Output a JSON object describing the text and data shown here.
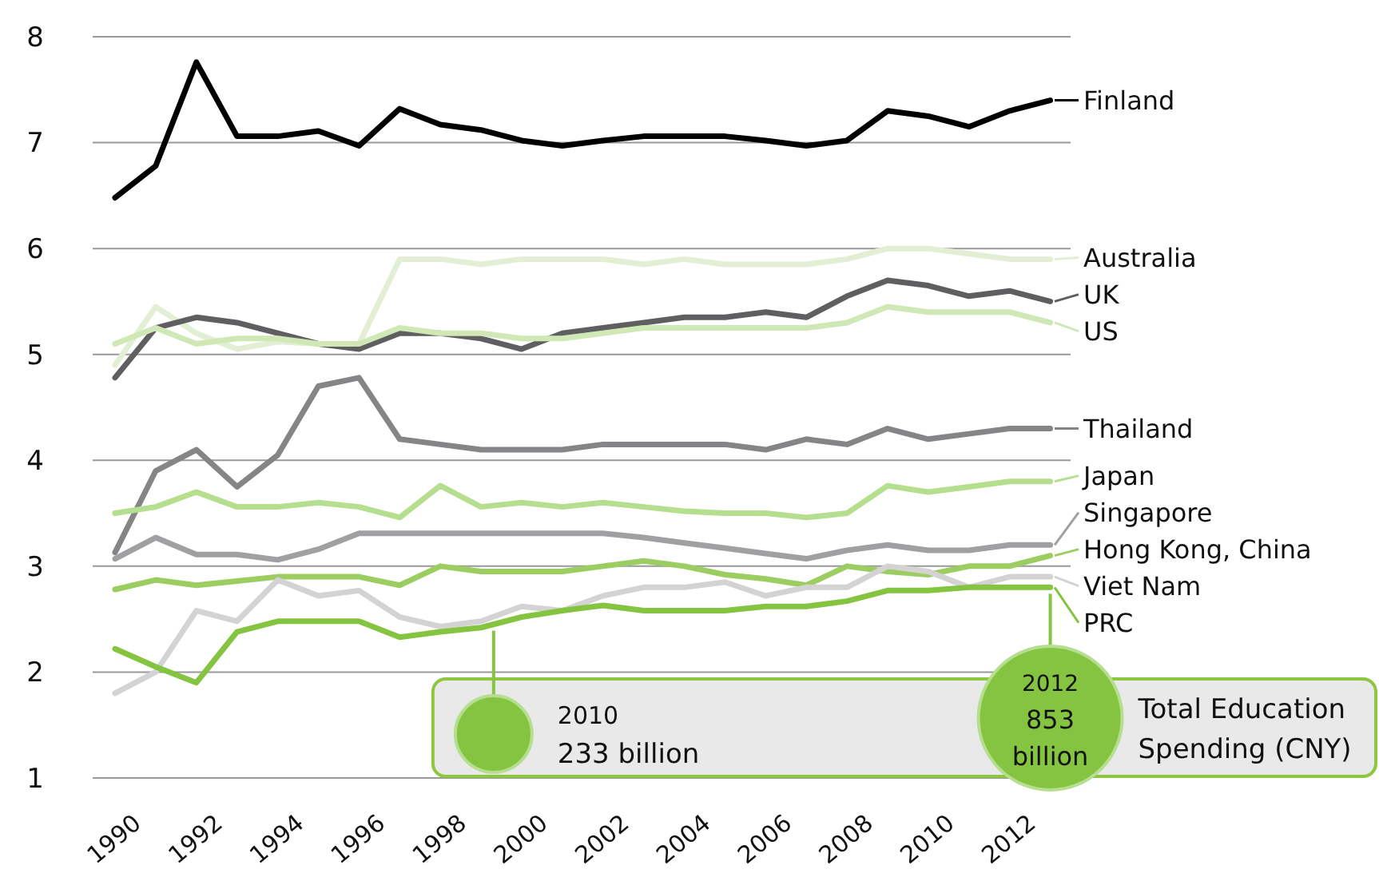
{
  "chart_data": {
    "type": "line",
    "x": [
      1990,
      1991,
      1992,
      1993,
      1994,
      1995,
      1996,
      1997,
      1998,
      1999,
      2000,
      2001,
      2002,
      2003,
      2004,
      2005,
      2006,
      2007,
      2008,
      2009,
      2010,
      2011,
      2012,
      2013
    ],
    "xlim": [
      1989.45,
      2013.5
    ],
    "xticks": [
      1990,
      1992,
      1994,
      1996,
      1998,
      2000,
      2002,
      2004,
      2006,
      2008,
      2010,
      2012
    ],
    "ylim": [
      1,
      8
    ],
    "yticks": [
      1,
      2,
      3,
      4,
      5,
      6,
      7,
      8
    ],
    "grid": "y",
    "legend": "right",
    "line_style": "solid",
    "marker": "none",
    "series": [
      {
        "name": "Finland",
        "color": "#000000",
        "values": [
          6.48,
          6.78,
          7.76,
          7.06,
          7.06,
          7.11,
          6.97,
          7.32,
          7.17,
          7.12,
          7.02,
          6.97,
          7.02,
          7.06,
          7.06,
          7.06,
          7.02,
          6.97,
          7.02,
          7.3,
          7.25,
          7.15,
          7.3,
          7.4
        ]
      },
      {
        "name": "Australia",
        "color": "#e2efd5",
        "values": [
          4.9,
          5.45,
          5.2,
          5.05,
          5.12,
          5.1,
          5.1,
          5.9,
          5.9,
          5.85,
          5.9,
          5.9,
          5.9,
          5.85,
          5.9,
          5.85,
          5.85,
          5.85,
          5.9,
          6.0,
          6.0,
          5.95,
          5.9,
          5.9
        ]
      },
      {
        "name": "UK",
        "color": "#5f5f61",
        "values": [
          4.78,
          5.25,
          5.35,
          5.3,
          5.2,
          5.1,
          5.05,
          5.2,
          5.2,
          5.15,
          5.05,
          5.2,
          5.25,
          5.3,
          5.35,
          5.35,
          5.4,
          5.35,
          5.55,
          5.7,
          5.65,
          5.55,
          5.6,
          5.5
        ]
      },
      {
        "name": "US",
        "color": "#cfe8b5",
        "values": [
          5.1,
          5.25,
          5.1,
          5.15,
          5.15,
          5.1,
          5.1,
          5.25,
          5.2,
          5.2,
          5.15,
          5.15,
          5.2,
          5.25,
          5.25,
          5.25,
          5.25,
          5.25,
          5.3,
          5.45,
          5.4,
          5.4,
          5.4,
          5.3
        ]
      },
      {
        "name": "Thailand",
        "color": "#858587",
        "values": [
          3.13,
          3.9,
          4.1,
          3.75,
          4.05,
          4.7,
          4.78,
          4.2,
          4.15,
          4.1,
          4.1,
          4.1,
          4.15,
          4.15,
          4.15,
          4.15,
          4.1,
          4.2,
          4.15,
          4.3,
          4.2,
          4.25,
          4.3,
          4.3
        ]
      },
      {
        "name": "Japan",
        "color": "#b5de8f",
        "values": [
          3.5,
          3.56,
          3.7,
          3.56,
          3.56,
          3.6,
          3.56,
          3.46,
          3.76,
          3.56,
          3.6,
          3.56,
          3.6,
          3.56,
          3.52,
          3.5,
          3.5,
          3.46,
          3.5,
          3.76,
          3.7,
          3.75,
          3.8,
          3.8
        ]
      },
      {
        "name": "Singapore",
        "color": "#a0a0a2",
        "values": [
          3.07,
          3.27,
          3.11,
          3.11,
          3.06,
          3.16,
          3.31,
          3.31,
          3.31,
          3.31,
          3.31,
          3.31,
          3.31,
          3.27,
          3.22,
          3.17,
          3.12,
          3.07,
          3.15,
          3.2,
          3.15,
          3.15,
          3.2,
          3.2
        ]
      },
      {
        "name": "Hong Kong, China",
        "color": "#9ccd60",
        "values": [
          2.78,
          2.87,
          2.82,
          2.86,
          2.9,
          2.9,
          2.9,
          2.82,
          3.0,
          2.95,
          2.95,
          2.95,
          3.0,
          3.05,
          3.0,
          2.92,
          2.88,
          2.82,
          3.0,
          2.95,
          2.92,
          3.0,
          3.0,
          3.1
        ]
      },
      {
        "name": "Viet Nam",
        "color": "#d3d3d3",
        "values": [
          1.8,
          2.0,
          2.58,
          2.48,
          2.87,
          2.72,
          2.77,
          2.52,
          2.43,
          2.48,
          2.62,
          2.58,
          2.72,
          2.8,
          2.8,
          2.85,
          2.72,
          2.8,
          2.8,
          3.0,
          2.95,
          2.8,
          2.9,
          2.9
        ]
      },
      {
        "name": "PRC",
        "color": "#84c440",
        "values": [
          2.22,
          2.05,
          1.9,
          2.38,
          2.48,
          2.48,
          2.48,
          2.33,
          2.38,
          2.42,
          2.52,
          2.58,
          2.63,
          2.58,
          2.58,
          2.58,
          2.62,
          2.62,
          2.67,
          2.77,
          2.77,
          2.8,
          2.8,
          2.8
        ]
      }
    ],
    "annotations": [
      "2010\n233 billion",
      "2012\n853\nbillion",
      "Total Education\nSpending (CNY)"
    ]
  }
}
